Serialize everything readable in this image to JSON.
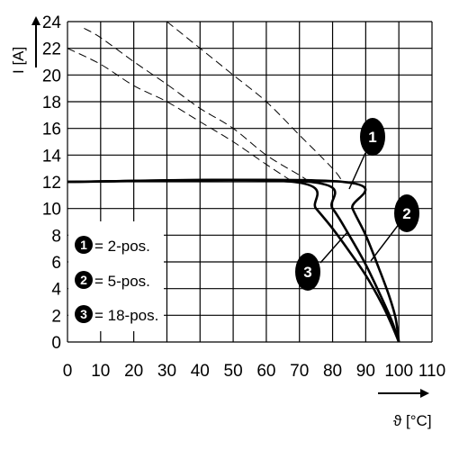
{
  "chart_data": {
    "type": "line",
    "xlabel": "ϑ [°C]",
    "ylabel": "I [A]",
    "xlim": [
      0,
      110
    ],
    "ylim": [
      0,
      24
    ],
    "xticks": [
      "0",
      "10",
      "20",
      "30",
      "40",
      "50",
      "60",
      "70",
      "80",
      "90",
      "100",
      "110"
    ],
    "yticks": [
      "0",
      "2",
      "4",
      "6",
      "8",
      "10",
      "12",
      "14",
      "16",
      "18",
      "20",
      "22",
      "24"
    ],
    "grid": true,
    "legend": {
      "placement": "left",
      "entries": [
        {
          "num": "1",
          "text": "= 2-pos."
        },
        {
          "num": "2",
          "text": "= 5-pos."
        },
        {
          "num": "3",
          "text": "= 18-pos."
        }
      ]
    },
    "series": [
      {
        "key": "1",
        "limit_points": [
          [
            0,
            12
          ],
          [
            83,
            12
          ],
          [
            86,
            10
          ],
          [
            90,
            8
          ],
          [
            94,
            5.5
          ],
          [
            97,
            3.5
          ],
          [
            99,
            1.8
          ],
          [
            100,
            0
          ]
        ],
        "derating_points": [
          [
            30,
            24
          ],
          [
            40,
            22
          ],
          [
            50,
            20
          ],
          [
            60,
            18
          ],
          [
            70,
            15.5
          ],
          [
            80,
            13
          ],
          [
            83,
            12
          ]
        ]
      },
      {
        "key": "2",
        "limit_points": [
          [
            0,
            12
          ],
          [
            73,
            12
          ],
          [
            80,
            10
          ],
          [
            85,
            8
          ],
          [
            90,
            5.8
          ],
          [
            95,
            3.2
          ],
          [
            98,
            1.5
          ],
          [
            100,
            0
          ]
        ],
        "derating_points": [
          [
            5,
            23.5
          ],
          [
            10,
            22.8
          ],
          [
            20,
            21
          ],
          [
            30,
            19.3
          ],
          [
            40,
            17.5
          ],
          [
            50,
            16
          ],
          [
            60,
            14
          ],
          [
            70,
            12.5
          ],
          [
            73,
            12
          ]
        ]
      },
      {
        "key": "3",
        "limit_points": [
          [
            0,
            12
          ],
          [
            68,
            12
          ],
          [
            75,
            10
          ],
          [
            80,
            8.5
          ],
          [
            85,
            6.8
          ],
          [
            90,
            5
          ],
          [
            95,
            2.8
          ],
          [
            98,
            1.2
          ],
          [
            100,
            0
          ]
        ],
        "derating_points": [
          [
            0,
            22
          ],
          [
            10,
            20.8
          ],
          [
            20,
            19.2
          ],
          [
            30,
            18
          ],
          [
            40,
            16.5
          ],
          [
            50,
            15
          ],
          [
            60,
            13.3
          ],
          [
            68,
            12
          ]
        ]
      }
    ],
    "callouts": [
      {
        "num": "1"
      },
      {
        "num": "2"
      },
      {
        "num": "3"
      }
    ]
  }
}
